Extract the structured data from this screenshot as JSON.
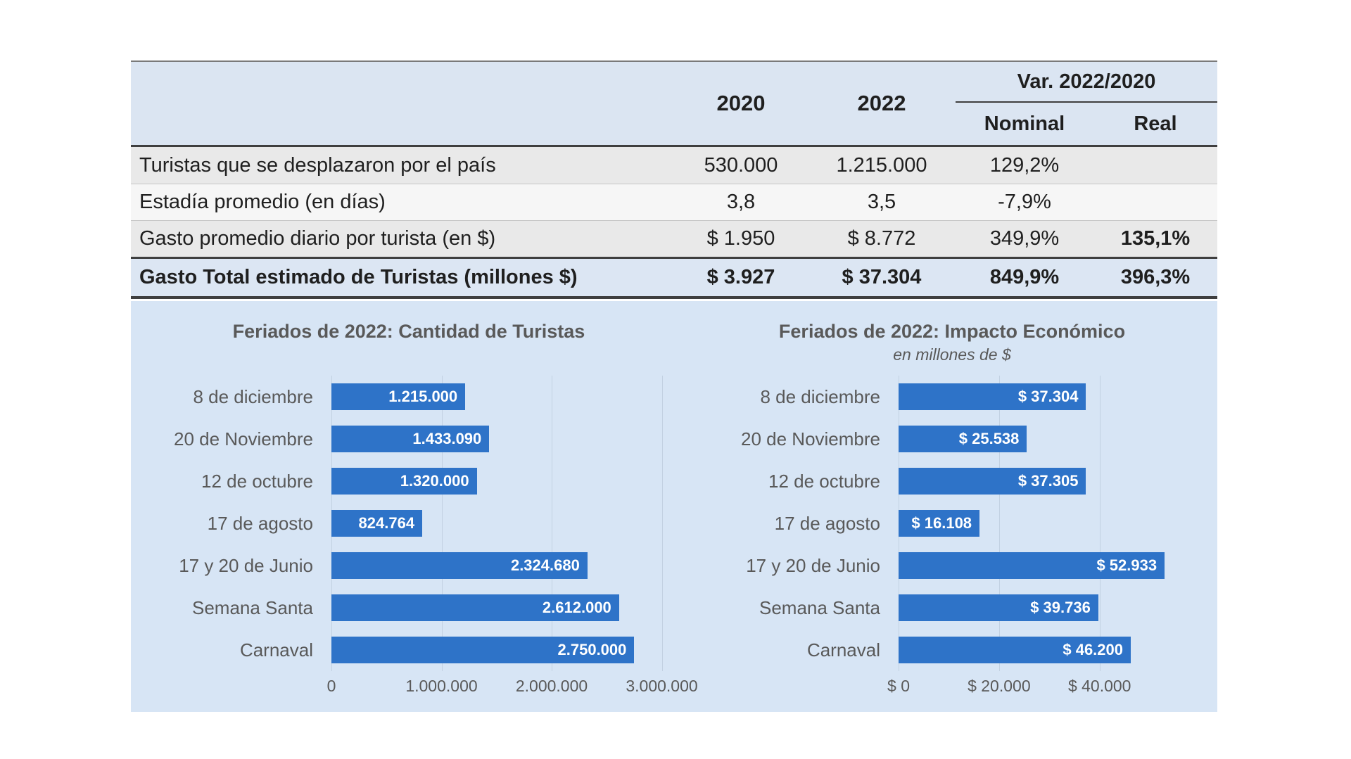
{
  "colors": {
    "bar": "#2e73c8",
    "panel_bg": "#d7e5f5",
    "header_bg": "#dbe5f2",
    "total_row_bg": "#dce6f3"
  },
  "table": {
    "headers": {
      "y2020": "2020",
      "y2022": "2022",
      "var_group": "Var. 2022/2020",
      "nominal": "Nominal",
      "real": "Real"
    },
    "rows": [
      {
        "label": "Turistas que se desplazaron por el país",
        "v2020": "530.000",
        "v2022": "1.215.000",
        "nominal": "129,2%",
        "real": "",
        "total": false
      },
      {
        "label": "Estadía promedio (en días)",
        "v2020": "3,8",
        "v2022": "3,5",
        "nominal": "-7,9%",
        "real": "",
        "total": false
      },
      {
        "label": "Gasto promedio diario por turista (en $)",
        "v2020": "$ 1.950",
        "v2022": "$ 8.772",
        "nominal": "349,9%",
        "real": "135,1%",
        "total": false
      },
      {
        "label": "Gasto Total estimado de Turistas (millones $)",
        "v2020": "$ 3.927",
        "v2022": "$ 37.304",
        "nominal": "849,9%",
        "real": "396,3%",
        "total": true
      }
    ]
  },
  "chart_data": [
    {
      "type": "bar",
      "orientation": "horizontal",
      "title": "Feriados de 2022: Cantidad de Turistas",
      "subtitle": "",
      "categories": [
        "8 de diciembre",
        "20 de Noviembre",
        "12 de octubre",
        "17 de agosto",
        "17 y 20 de Junio",
        "Semana Santa",
        "Carnaval"
      ],
      "values": [
        1215000,
        1433090,
        1320000,
        824764,
        2324680,
        2612000,
        2750000
      ],
      "value_labels": [
        "1.215.000",
        "1.433.090",
        "1.320.000",
        "824.764",
        "2.324.680",
        "2.612.000",
        "2.750.000"
      ],
      "xlim": [
        0,
        3150000
      ],
      "tick_values": [
        0,
        1000000,
        2000000,
        3000000
      ],
      "x_ticks": [
        "0",
        "1.000.000",
        "2.000.000",
        "3.000.000"
      ],
      "grid": true,
      "legend": "none",
      "bar_color": "#2e73c8"
    },
    {
      "type": "bar",
      "orientation": "horizontal",
      "title": "Feriados de 2022: Impacto Económico",
      "subtitle": "en millones de $",
      "categories": [
        "8 de diciembre",
        "20 de Noviembre",
        "12 de octubre",
        "17 de agosto",
        "17 y 20 de Junio",
        "Semana Santa",
        "Carnaval"
      ],
      "values": [
        37304,
        25538,
        37305,
        16108,
        52933,
        39736,
        46200
      ],
      "value_labels": [
        "$ 37.304",
        "$ 25.538",
        "$ 37.305",
        "$ 16.108",
        "$ 52.933",
        "$ 39.736",
        "$ 46.200"
      ],
      "xlim": [
        0,
        59500
      ],
      "tick_values": [
        0,
        20000,
        40000
      ],
      "x_ticks": [
        "$ 0",
        "$ 20.000",
        "$ 40.000"
      ],
      "grid": true,
      "legend": "none",
      "bar_color": "#2e73c8"
    }
  ]
}
